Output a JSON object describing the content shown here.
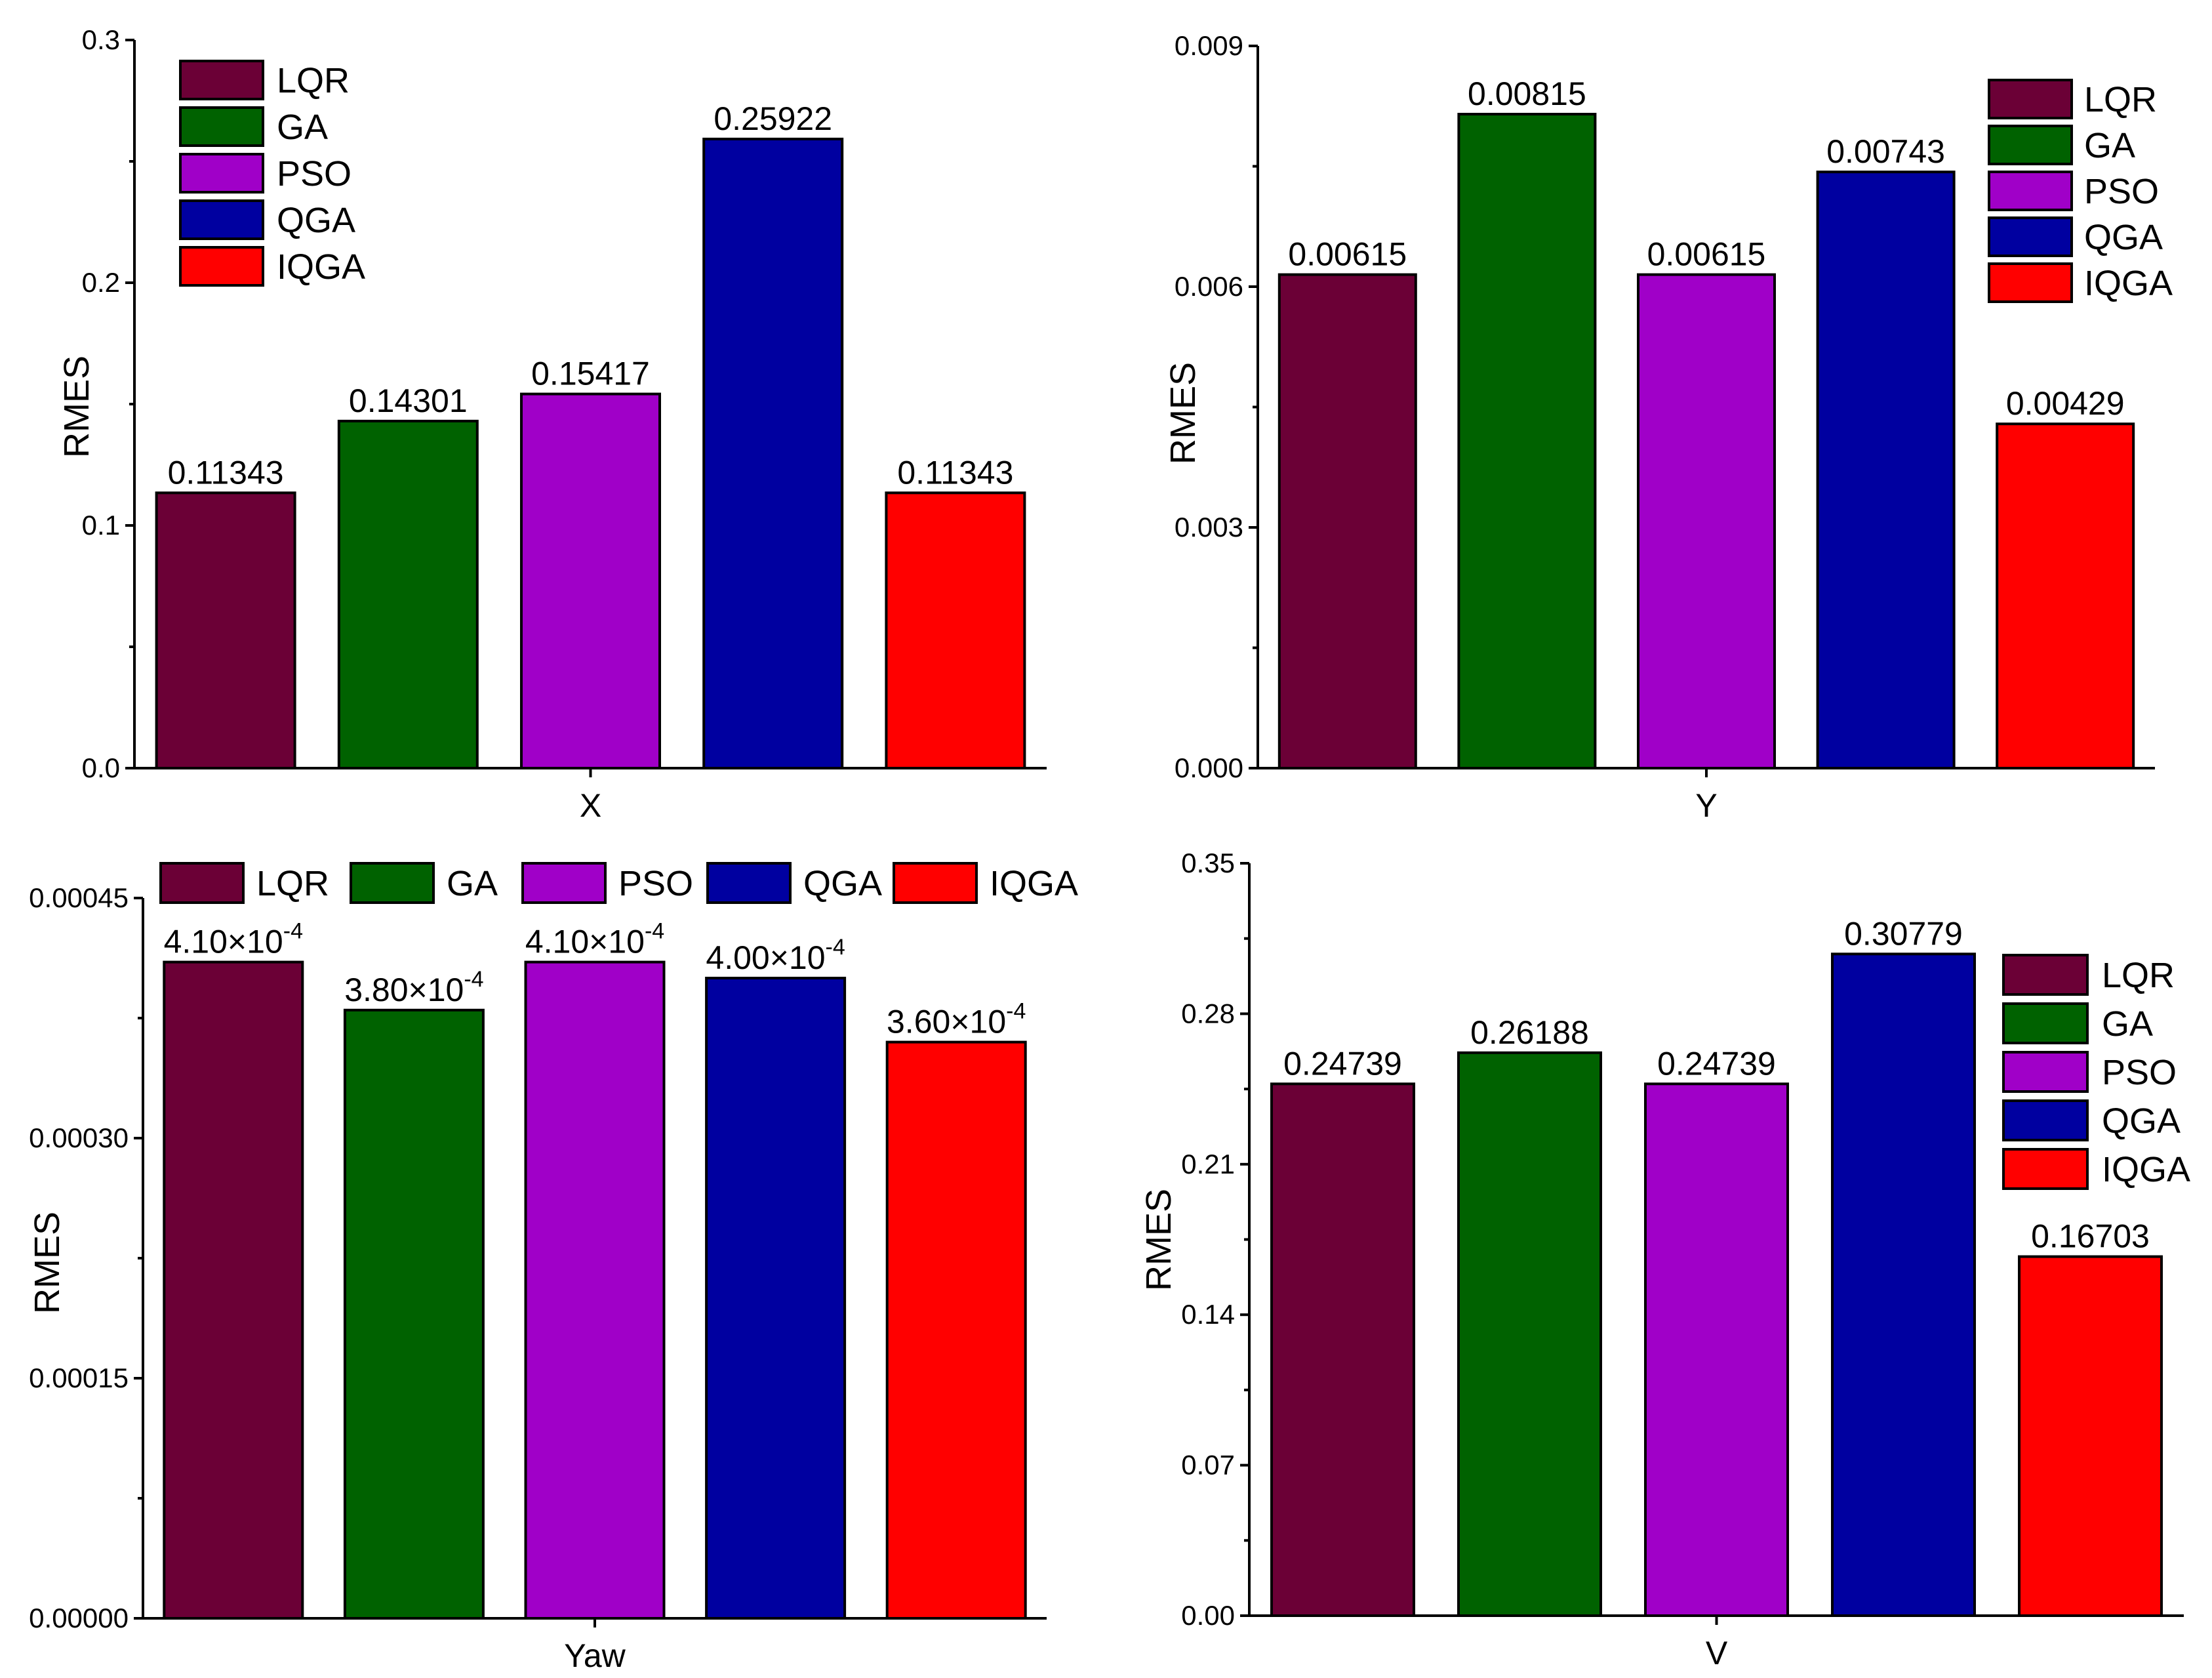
{
  "chart_data": [
    {
      "type": "bar",
      "title": "",
      "xlabel": "X",
      "ylabel": "RMES",
      "categories": [
        "LQR",
        "GA",
        "PSO",
        "QGA",
        "IQGA"
      ],
      "values": [
        0.11343,
        0.14301,
        0.15417,
        0.25922,
        0.11343
      ],
      "data_labels": [
        "0.11343",
        "0.14301",
        "0.15417",
        "0.25922",
        "0.11343"
      ],
      "ylim": [
        0,
        0.3
      ],
      "yticks": [
        "0.0",
        "0.1",
        "0.2",
        "0.3"
      ],
      "legend": {
        "placement": "top-left",
        "layout": "vertical"
      }
    },
    {
      "type": "bar",
      "title": "",
      "xlabel": "Y",
      "ylabel": "RMES",
      "categories": [
        "LQR",
        "GA",
        "PSO",
        "QGA",
        "IQGA"
      ],
      "values": [
        0.00615,
        0.00815,
        0.00615,
        0.00743,
        0.00429
      ],
      "data_labels": [
        "0.00615",
        "0.00815",
        "0.00615",
        "0.00743",
        "0.00429"
      ],
      "ylim": [
        0,
        0.009
      ],
      "yticks": [
        "0.000",
        "0.003",
        "0.006",
        "0.009"
      ],
      "legend": {
        "placement": "top-right",
        "layout": "vertical"
      }
    },
    {
      "type": "bar",
      "title": "",
      "xlabel": "Yaw",
      "ylabel": "RMES",
      "categories": [
        "LQR",
        "GA",
        "PSO",
        "QGA",
        "IQGA"
      ],
      "values": [
        0.00041,
        0.00038,
        0.00041,
        0.0004,
        0.00036
      ],
      "data_labels": [
        "4.10×10",
        "3.80×10",
        "4.10×10",
        "4.00×10",
        "3.60×10"
      ],
      "data_label_exponent": "-4",
      "ylim": [
        0,
        0.00045
      ],
      "yticks": [
        "0.00000",
        "0.00015",
        "0.00030",
        "0.00045"
      ],
      "legend": {
        "placement": "top",
        "layout": "horizontal"
      }
    },
    {
      "type": "bar",
      "title": "",
      "xlabel": "V",
      "ylabel": "RMES",
      "categories": [
        "LQR",
        "GA",
        "PSO",
        "QGA",
        "IQGA"
      ],
      "values": [
        0.24739,
        0.26188,
        0.24739,
        0.30779,
        0.16703
      ],
      "data_labels": [
        "0.24739",
        "0.26188",
        "0.24739",
        "0.30779",
        "0.16703"
      ],
      "ylim": [
        0,
        0.35
      ],
      "yticks": [
        "0.00",
        "0.07",
        "0.14",
        "0.21",
        "0.28",
        "0.35"
      ],
      "legend": {
        "placement": "right",
        "layout": "vertical"
      }
    }
  ],
  "colors": {
    "LQR": "#6b0036",
    "GA": "#006200",
    "PSO": "#a000c8",
    "QGA": "#0000a0",
    "IQGA": "#ff0000"
  }
}
